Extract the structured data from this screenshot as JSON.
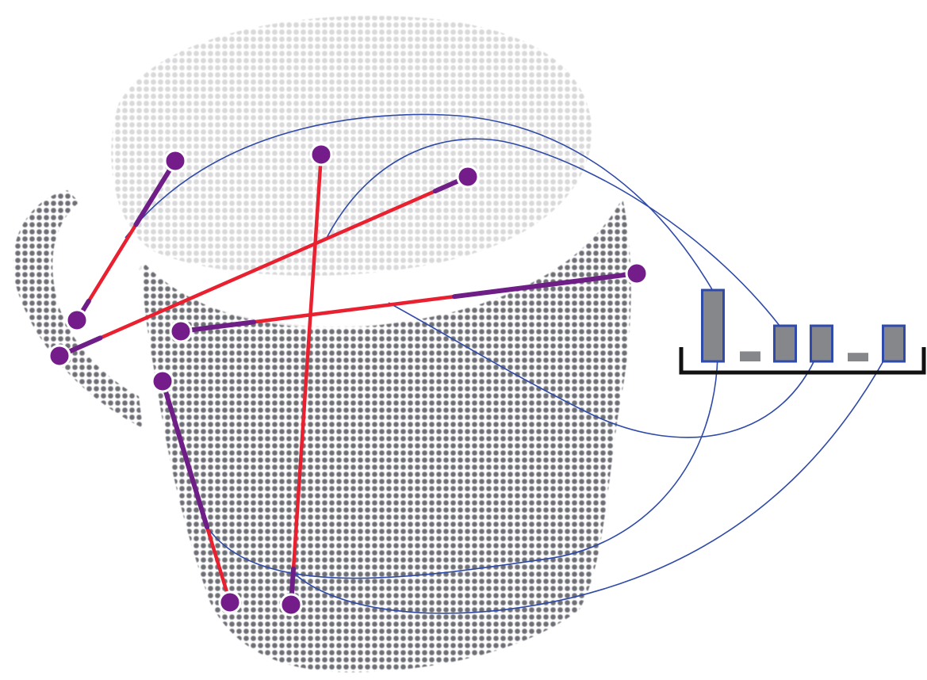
{
  "colors": {
    "background": "#ffffff",
    "cloud_front": "#6e7076",
    "cloud_back": "#d6d6d8",
    "segment_red": "#e8202f",
    "segment_purple": "#6e1e86",
    "endpoint_fill": "#741c8a",
    "endpoint_stroke": "#ffffff",
    "connector": "#2f4aa8",
    "histogram_fill": "#85878b",
    "histogram_stroke": "#2f4aa8",
    "axis": "#111111"
  },
  "icons": {
    "point_cloud": "mug-point-cloud",
    "endpoint": "purple-dot"
  },
  "histogram": {
    "bar_values": [
      1.0,
      0.14,
      0.5,
      0.5,
      0.12,
      0.5
    ]
  }
}
